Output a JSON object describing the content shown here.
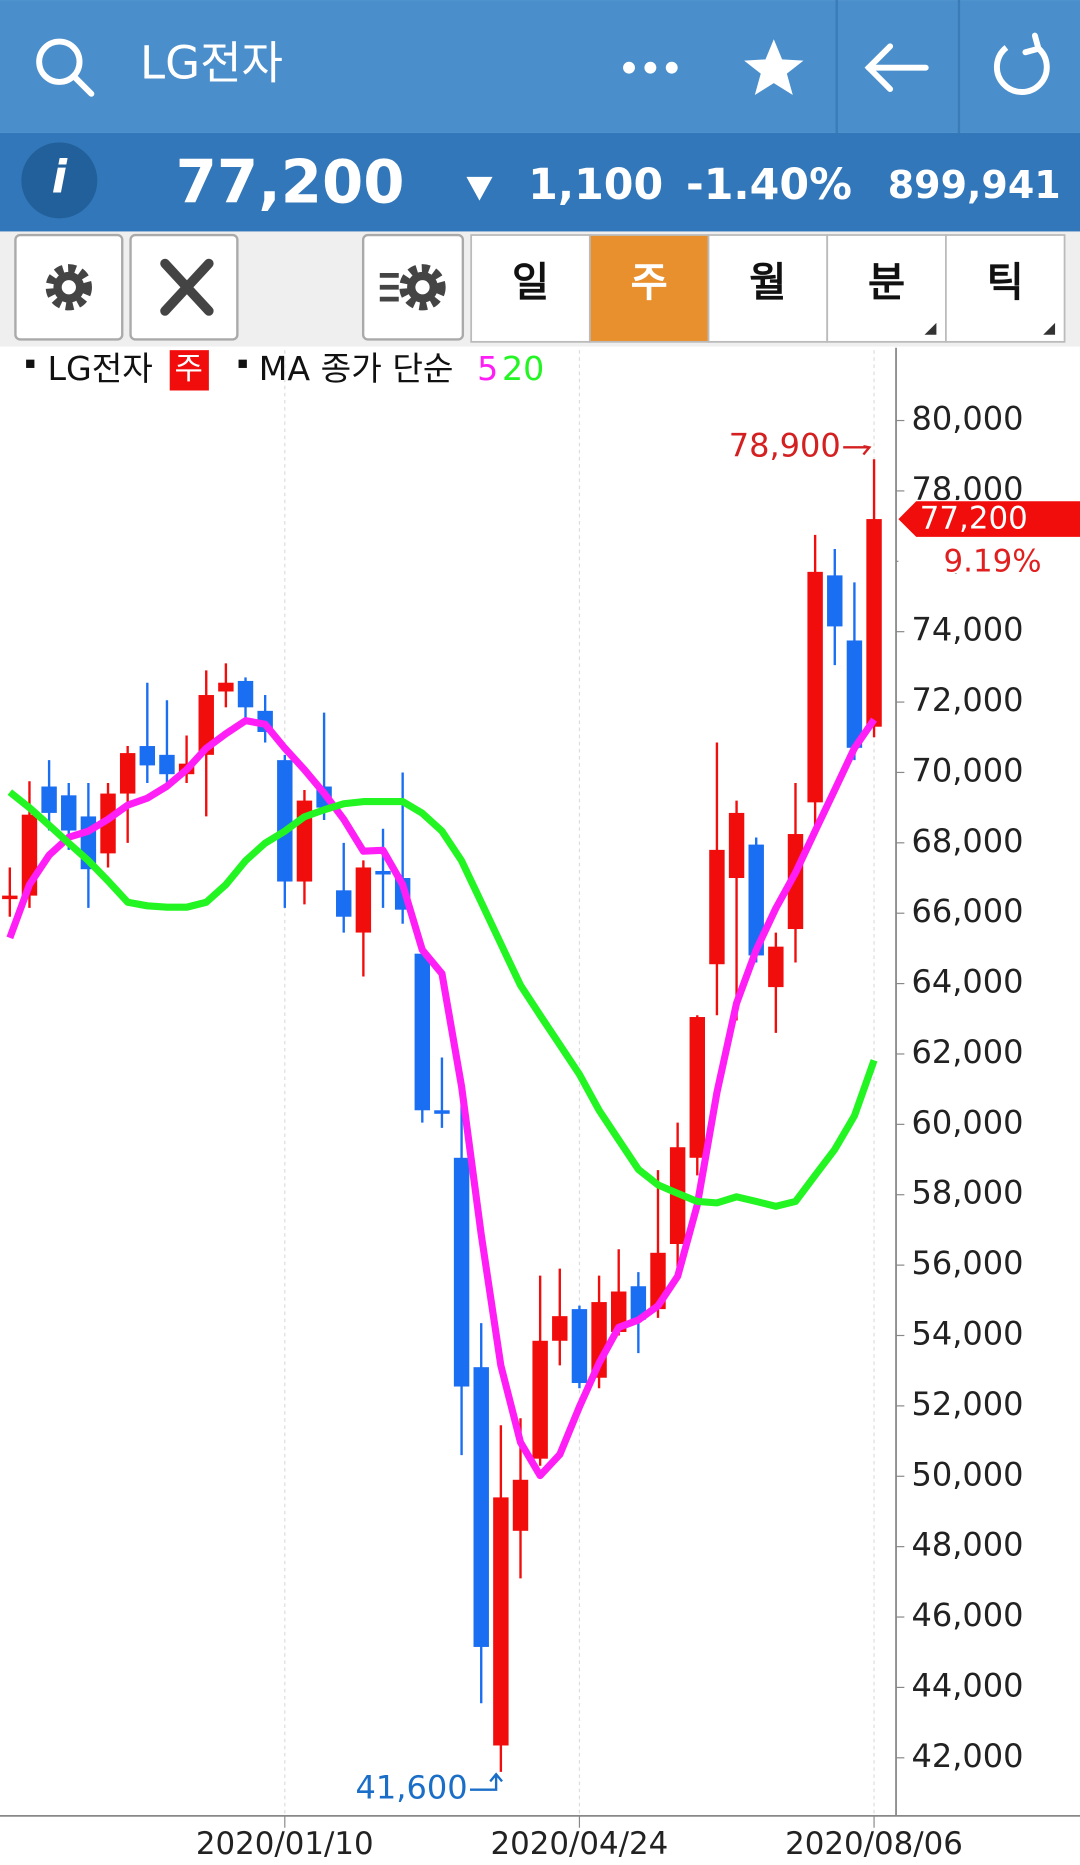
{
  "header": {
    "title": "LG전자"
  },
  "quote": {
    "info": "i",
    "price": "77,200",
    "direction": "down",
    "change": "1,100",
    "change_pct": "-1.40%",
    "volume": "899,941"
  },
  "toolbar": {
    "tabs": [
      "일",
      "주",
      "월",
      "분",
      "틱"
    ],
    "active_tab": 1
  },
  "legend": {
    "symbol": "LG전자",
    "period": "주",
    "ma_label": "MA 종가 단순"
  },
  "chart_data": {
    "type": "candlestick",
    "categories": [
      null,
      null,
      null,
      null,
      null,
      null,
      null,
      null,
      null,
      null,
      null,
      null,
      null,
      null,
      "2020/01/10",
      null,
      null,
      null,
      null,
      null,
      null,
      null,
      null,
      null,
      null,
      null,
      null,
      null,
      null,
      "2020/04/24",
      null,
      null,
      null,
      null,
      null,
      null,
      null,
      null,
      null,
      null,
      null,
      null,
      null,
      null,
      "2020/08/06"
    ],
    "open": [
      66400,
      66500,
      69600,
      69350,
      68750,
      67700,
      69400,
      70750,
      70500,
      69950,
      70500,
      72300,
      72600,
      71750,
      70350,
      66900,
      69600,
      66650,
      65450,
      67200,
      67000,
      64850,
      60400,
      59050,
      53100,
      42350,
      48450,
      50500,
      53850,
      54750,
      52800,
      54100,
      55400,
      54750,
      56600,
      59050,
      64550,
      67000,
      67950,
      63900,
      65550,
      69150,
      75600,
      73750,
      71300
    ],
    "high": [
      67300,
      69750,
      70350,
      69700,
      69700,
      69700,
      70750,
      72550,
      72050,
      71050,
      72900,
      73100,
      72700,
      72200,
      70500,
      69500,
      71700,
      68000,
      67500,
      68400,
      70000,
      64950,
      61900,
      61400,
      54350,
      51450,
      51650,
      55700,
      55900,
      54850,
      55700,
      56450,
      55800,
      58700,
      60050,
      63100,
      70850,
      69200,
      68150,
      65450,
      69700,
      76750,
      76350,
      75400,
      78900
    ],
    "low": [
      65900,
      66150,
      68350,
      67800,
      66150,
      67300,
      68000,
      69700,
      69500,
      69700,
      68750,
      71850,
      71550,
      70850,
      66150,
      66250,
      68650,
      65450,
      64200,
      66150,
      65700,
      60050,
      59900,
      50600,
      43550,
      41600,
      47100,
      50300,
      53150,
      52500,
      52500,
      54000,
      53500,
      54500,
      55850,
      58550,
      63100,
      62950,
      64600,
      62600,
      64600,
      68500,
      73050,
      70350,
      71000
    ],
    "close": [
      66500,
      68800,
      68850,
      68350,
      67250,
      69400,
      70550,
      70200,
      69950,
      70250,
      72200,
      72550,
      71850,
      71150,
      66900,
      69200,
      69000,
      65900,
      67300,
      67100,
      66100,
      60400,
      60300,
      52550,
      45150,
      49400,
      49900,
      53850,
      54550,
      52650,
      54950,
      55250,
      54450,
      56350,
      59350,
      63050,
      67800,
      68850,
      64800,
      65050,
      68250,
      75700,
      74150,
      70700,
      77200
    ],
    "up_color": "#f20d0d",
    "down_color": "#1a6ef2",
    "series": [
      {
        "name": "5",
        "color": "#ff1ef5",
        "values": [
          65300,
          66810,
          67650,
          68160,
          68330,
          68670,
          69070,
          69270,
          69610,
          70080,
          70690,
          71100,
          71470,
          71370,
          70690,
          70080,
          69410,
          68670,
          67760,
          67790,
          66810,
          64960,
          64280,
          61080,
          56860,
          53150,
          50960,
          50020,
          50620,
          51970,
          53220,
          54230,
          54440,
          54840,
          55680,
          57710,
          60910,
          63440,
          64960,
          66140,
          67150,
          68330,
          69510,
          70690,
          71500
        ]
      },
      {
        "name": "20",
        "color": "#22f522",
        "values": [
          69440,
          69000,
          68500,
          67990,
          67490,
          66920,
          66310,
          66210,
          66170,
          66170,
          66310,
          66810,
          67490,
          67990,
          68330,
          68740,
          68940,
          69110,
          69170,
          69170,
          69170,
          68840,
          68330,
          67490,
          66310,
          65130,
          63950,
          63100,
          62260,
          61420,
          60400,
          59560,
          58720,
          58280,
          58040,
          57810,
          57770,
          57940,
          57810,
          57670,
          57810,
          58550,
          59290,
          60240,
          61820
        ]
      }
    ],
    "ylim": [
      40350,
      82000
    ],
    "yticks": [
      {
        "value": 42000,
        "label": "42,000"
      },
      {
        "value": 44000,
        "label": "44,000"
      },
      {
        "value": 46000,
        "label": "46,000"
      },
      {
        "value": 48000,
        "label": "48,000"
      },
      {
        "value": 50000,
        "label": "50,000"
      },
      {
        "value": 52000,
        "label": "52,000"
      },
      {
        "value": 54000,
        "label": "54,000"
      },
      {
        "value": 56000,
        "label": "56,000"
      },
      {
        "value": 58000,
        "label": "58,000"
      },
      {
        "value": 60000,
        "label": "60,000"
      },
      {
        "value": 62000,
        "label": "62,000"
      },
      {
        "value": 64000,
        "label": "64,000"
      },
      {
        "value": 66000,
        "label": "66,000"
      },
      {
        "value": 68000,
        "label": "68,000"
      },
      {
        "value": 70000,
        "label": "70,000"
      },
      {
        "value": 72000,
        "label": "72,000"
      },
      {
        "value": 74000,
        "label": "74,000"
      },
      {
        "value": 76000,
        "label": "76,000"
      },
      {
        "value": 78000,
        "label": "78,000"
      },
      {
        "value": 80000,
        "label": "80,000"
      }
    ],
    "high_label": {
      "value": 78900,
      "label": "78,900"
    },
    "low_label": {
      "value": 41600,
      "label": "41,600"
    },
    "current": {
      "value": 77200,
      "label": "77,200"
    },
    "current_change": "9.19%",
    "grid": true
  }
}
